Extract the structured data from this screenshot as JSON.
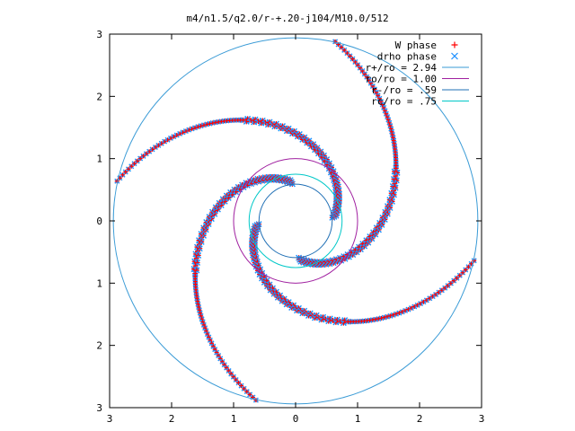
{
  "chart_data": {
    "type": "scatter",
    "title": "m4/n1.5/q2.0/r-+.20-j104/M10.0/512",
    "xlabel": "",
    "ylabel": "",
    "xlim": [
      -3,
      3
    ],
    "ylim": [
      -3,
      3
    ],
    "x_ticks": [
      -3,
      -2,
      -1,
      0,
      1,
      2,
      3
    ],
    "y_ticks": [
      -3,
      -2,
      -1,
      0,
      1,
      2,
      3
    ],
    "x_tick_labels": [
      "3",
      "2",
      "1",
      "0",
      "1",
      "2",
      "3"
    ],
    "y_tick_labels": [
      "3",
      "2",
      "1",
      "0",
      "1",
      "2",
      "3"
    ],
    "grid": false,
    "legend_position": "top-right",
    "series": [
      {
        "name": "W phase",
        "kind": "points",
        "marker": "plus",
        "color": "#ff0000"
      },
      {
        "name": "drho phase",
        "kind": "points",
        "marker": "cross",
        "color": "#1e90ff"
      },
      {
        "name": "r+/ro = 2.94",
        "kind": "circle",
        "radius": 2.94,
        "color": "#3a9bd6"
      },
      {
        "name": "ro/ro = 1.00",
        "kind": "circle",
        "radius": 1.0,
        "color": "#a020a0"
      },
      {
        "name": "r-/ro = .59",
        "kind": "circle",
        "radius": 0.59,
        "color": "#1f6fb5"
      },
      {
        "name": "rc/ro = .75",
        "kind": "circle",
        "radius": 0.75,
        "color": "#00c8c8"
      }
    ],
    "spiral_arms": [
      {
        "start_angle_deg": 5,
        "r_start": 0.62,
        "r_end": 2.95,
        "pitch": 0.55
      },
      {
        "start_angle_deg": 95,
        "r_start": 0.62,
        "r_end": 2.95,
        "pitch": 0.55
      },
      {
        "start_angle_deg": 185,
        "r_start": 0.62,
        "r_end": 2.95,
        "pitch": 0.55
      },
      {
        "start_angle_deg": 275,
        "r_start": 0.62,
        "r_end": 2.95,
        "pitch": 0.55
      }
    ]
  }
}
